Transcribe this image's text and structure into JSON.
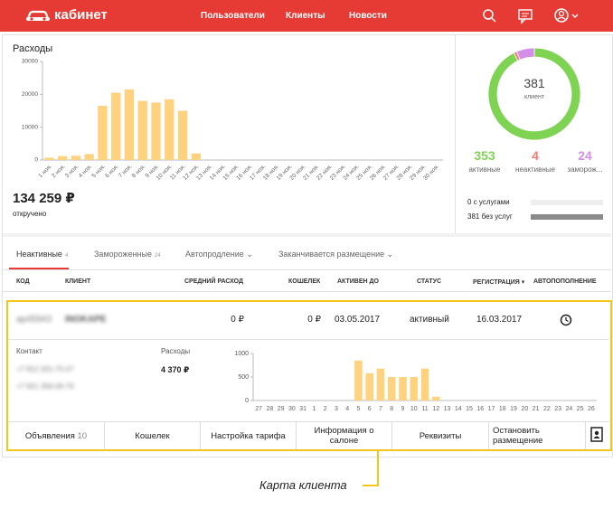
{
  "header": {
    "logo": "кабинет",
    "nav": [
      "Пользователи",
      "Клиенты",
      "Новости"
    ]
  },
  "chart_data": [
    {
      "type": "bar",
      "title": "Расходы",
      "categories": [
        "1 ноя.",
        "2 ноя.",
        "3 ноя.",
        "4 ноя.",
        "5 ноя.",
        "6 ноя.",
        "7 ноя.",
        "8 ноя.",
        "9 ноя.",
        "10 ноя.",
        "11 ноя.",
        "12 ноя.",
        "13 ноя.",
        "14 ноя.",
        "15 ноя.",
        "16 ноя.",
        "17 ноя.",
        "18 ноя.",
        "19 ноя.",
        "20 ноя.",
        "21 ноя.",
        "22 ноя.",
        "23 ноя.",
        "24 ноя.",
        "25 ноя.",
        "26 ноя.",
        "27 ноя.",
        "28 ноя.",
        "29 ноя.",
        "30 ноя."
      ],
      "values": [
        700,
        1200,
        1300,
        1800,
        16500,
        20500,
        21500,
        18000,
        17500,
        18500,
        15000,
        2000,
        0,
        0,
        0,
        0,
        0,
        0,
        0,
        0,
        0,
        0,
        0,
        0,
        0,
        0,
        0,
        0,
        0,
        0
      ],
      "color": "#ffd27f",
      "ylim": [
        0,
        30000
      ],
      "yticks": [
        0,
        10000,
        20000,
        30000
      ]
    },
    {
      "type": "donut",
      "total": 381,
      "center_label": "клиент",
      "categories": [
        "активные",
        "неактивные",
        "заморож..."
      ],
      "values": [
        353,
        4,
        24
      ],
      "colors": [
        "#7ed352",
        "#f47c74",
        "#d48ee8"
      ]
    },
    {
      "type": "bar",
      "categories": [
        "27",
        "28",
        "29",
        "30",
        "31",
        "1",
        "2",
        "3",
        "4",
        "5",
        "6",
        "7",
        "8",
        "9",
        "10",
        "11",
        "12",
        "13",
        "14",
        "15",
        "16",
        "17",
        "18",
        "19",
        "20",
        "21",
        "22",
        "23",
        "24",
        "25",
        "26"
      ],
      "values": [
        0,
        0,
        0,
        0,
        0,
        0,
        0,
        0,
        0,
        850,
        580,
        680,
        500,
        500,
        500,
        680,
        80,
        0,
        0,
        0,
        0,
        0,
        0,
        0,
        0,
        0,
        0,
        0,
        0,
        0,
        0
      ],
      "color": "#ffd27f",
      "ylim": [
        0,
        1000
      ],
      "yticks": [
        0,
        500,
        1000
      ]
    }
  ],
  "summary": {
    "amount": "134 259 ₽",
    "label": "откручено"
  },
  "services": [
    {
      "count": 0,
      "label": "с услугами"
    },
    {
      "count": 381,
      "label": "без услуг"
    }
  ],
  "tabs": [
    {
      "label": "Неактивные",
      "count": 4
    },
    {
      "label": "Замороженные",
      "count": 24
    },
    {
      "label": "Автопродление"
    },
    {
      "label": "Заканчивается размещение"
    }
  ],
  "table": {
    "columns": [
      "КОД",
      "КЛИЕНТ",
      "СРЕДНИЙ РАСХОД",
      "КОШЕЛЕК",
      "АКТИВЕН ДО",
      "СТАТУС",
      "РЕГИСТРАЦИЯ ▾",
      "АВТОПОПОЛНЕНИЕ"
    ],
    "row": [
      "ap45943",
      "INOKAPE",
      "0 ₽",
      "0 ₽",
      "03.05.2017",
      "активный",
      "16.03.2017"
    ]
  },
  "client_card": {
    "contact_label": "Контакт",
    "phones": [
      "+7 812 331-75-07",
      "+7 921 356-09-79"
    ],
    "expenses_label": "Расходы",
    "expenses_total": "4 370 ₽",
    "buttons": [
      {
        "label": "Объявления",
        "count": 10
      },
      {
        "label": "Кошелек"
      },
      {
        "label": "Настройка тарифа"
      },
      {
        "label": "Информация о салоне"
      },
      {
        "label": "Реквизиты"
      },
      {
        "label": "Остановить размещение"
      }
    ]
  },
  "annotation": "Карта клиента"
}
